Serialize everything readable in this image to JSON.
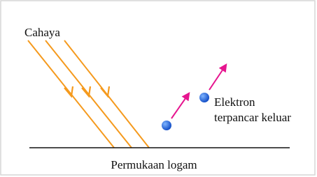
{
  "light_label": "Cahaya",
  "electron_label": [
    "Elektron",
    "terpancar keluar"
  ],
  "surface_label": "Permukaan logam"
}
